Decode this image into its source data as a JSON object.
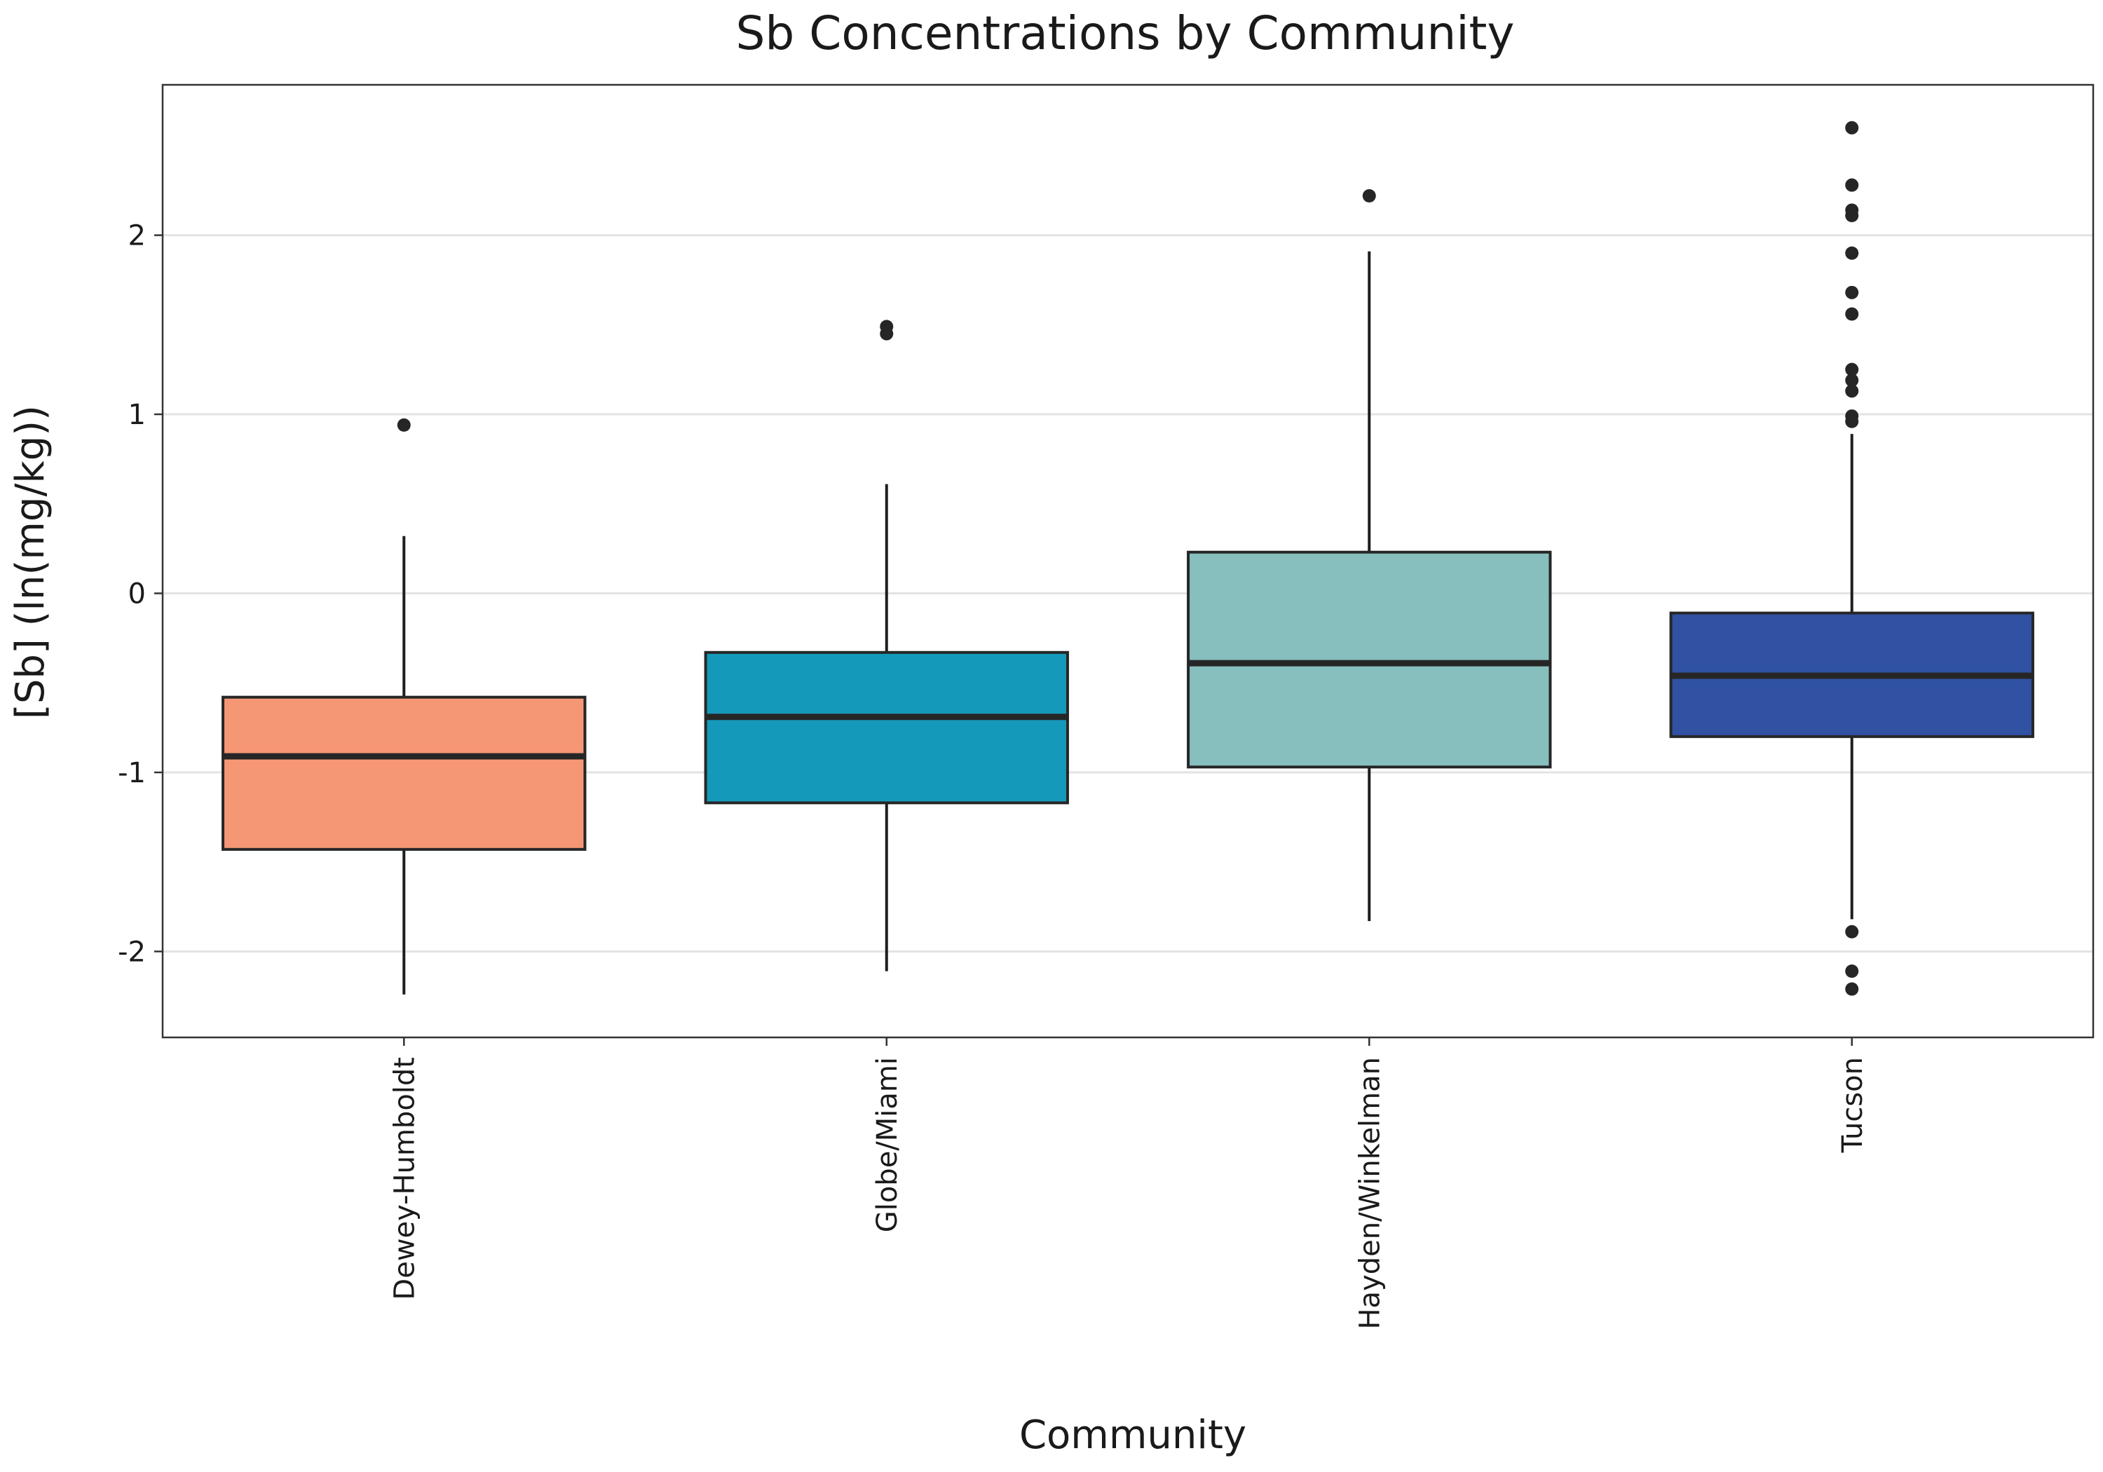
{
  "chart_data": {
    "type": "box",
    "title": "Sb Concentrations by Community",
    "xlabel": "Community",
    "ylabel": "[Sb] (ln(mg/kg))",
    "ylim": [
      -2.48,
      2.84
    ],
    "yticks": [
      -2,
      -1,
      0,
      1,
      2
    ],
    "ytick_labels": [
      "-2",
      "-1",
      "0",
      "1",
      "2"
    ],
    "grid": true,
    "categories": [
      "Dewey-Humboldt",
      "Globe/Miami",
      "Hayden/Winkelman",
      "Tucson"
    ],
    "boxes": [
      {
        "category": "Dewey-Humboldt",
        "color": "#F59775",
        "whisker_low": -2.24,
        "q1": -1.43,
        "median": -0.91,
        "q3": -0.58,
        "whisker_high": 0.32,
        "outliers": [
          0.94
        ]
      },
      {
        "category": "Globe/Miami",
        "color": "#1599BA",
        "whisker_low": -2.11,
        "q1": -1.17,
        "median": -0.69,
        "q3": -0.33,
        "whisker_high": 0.61,
        "outliers": [
          1.45,
          1.49
        ]
      },
      {
        "category": "Hayden/Winkelman",
        "color": "#86BFBD",
        "whisker_low": -1.83,
        "q1": -0.97,
        "median": -0.39,
        "q3": 0.23,
        "whisker_high": 1.91,
        "outliers": [
          2.22
        ]
      },
      {
        "category": "Tucson",
        "color": "#3152A3",
        "whisker_low": -1.82,
        "q1": -0.8,
        "median": -0.46,
        "q3": -0.11,
        "whisker_high": 0.89,
        "outliers": [
          -2.21,
          -2.11,
          -1.89,
          0.96,
          0.99,
          1.13,
          1.19,
          1.25,
          1.56,
          1.68,
          1.9,
          2.11,
          2.14,
          2.28,
          2.6
        ]
      }
    ]
  }
}
